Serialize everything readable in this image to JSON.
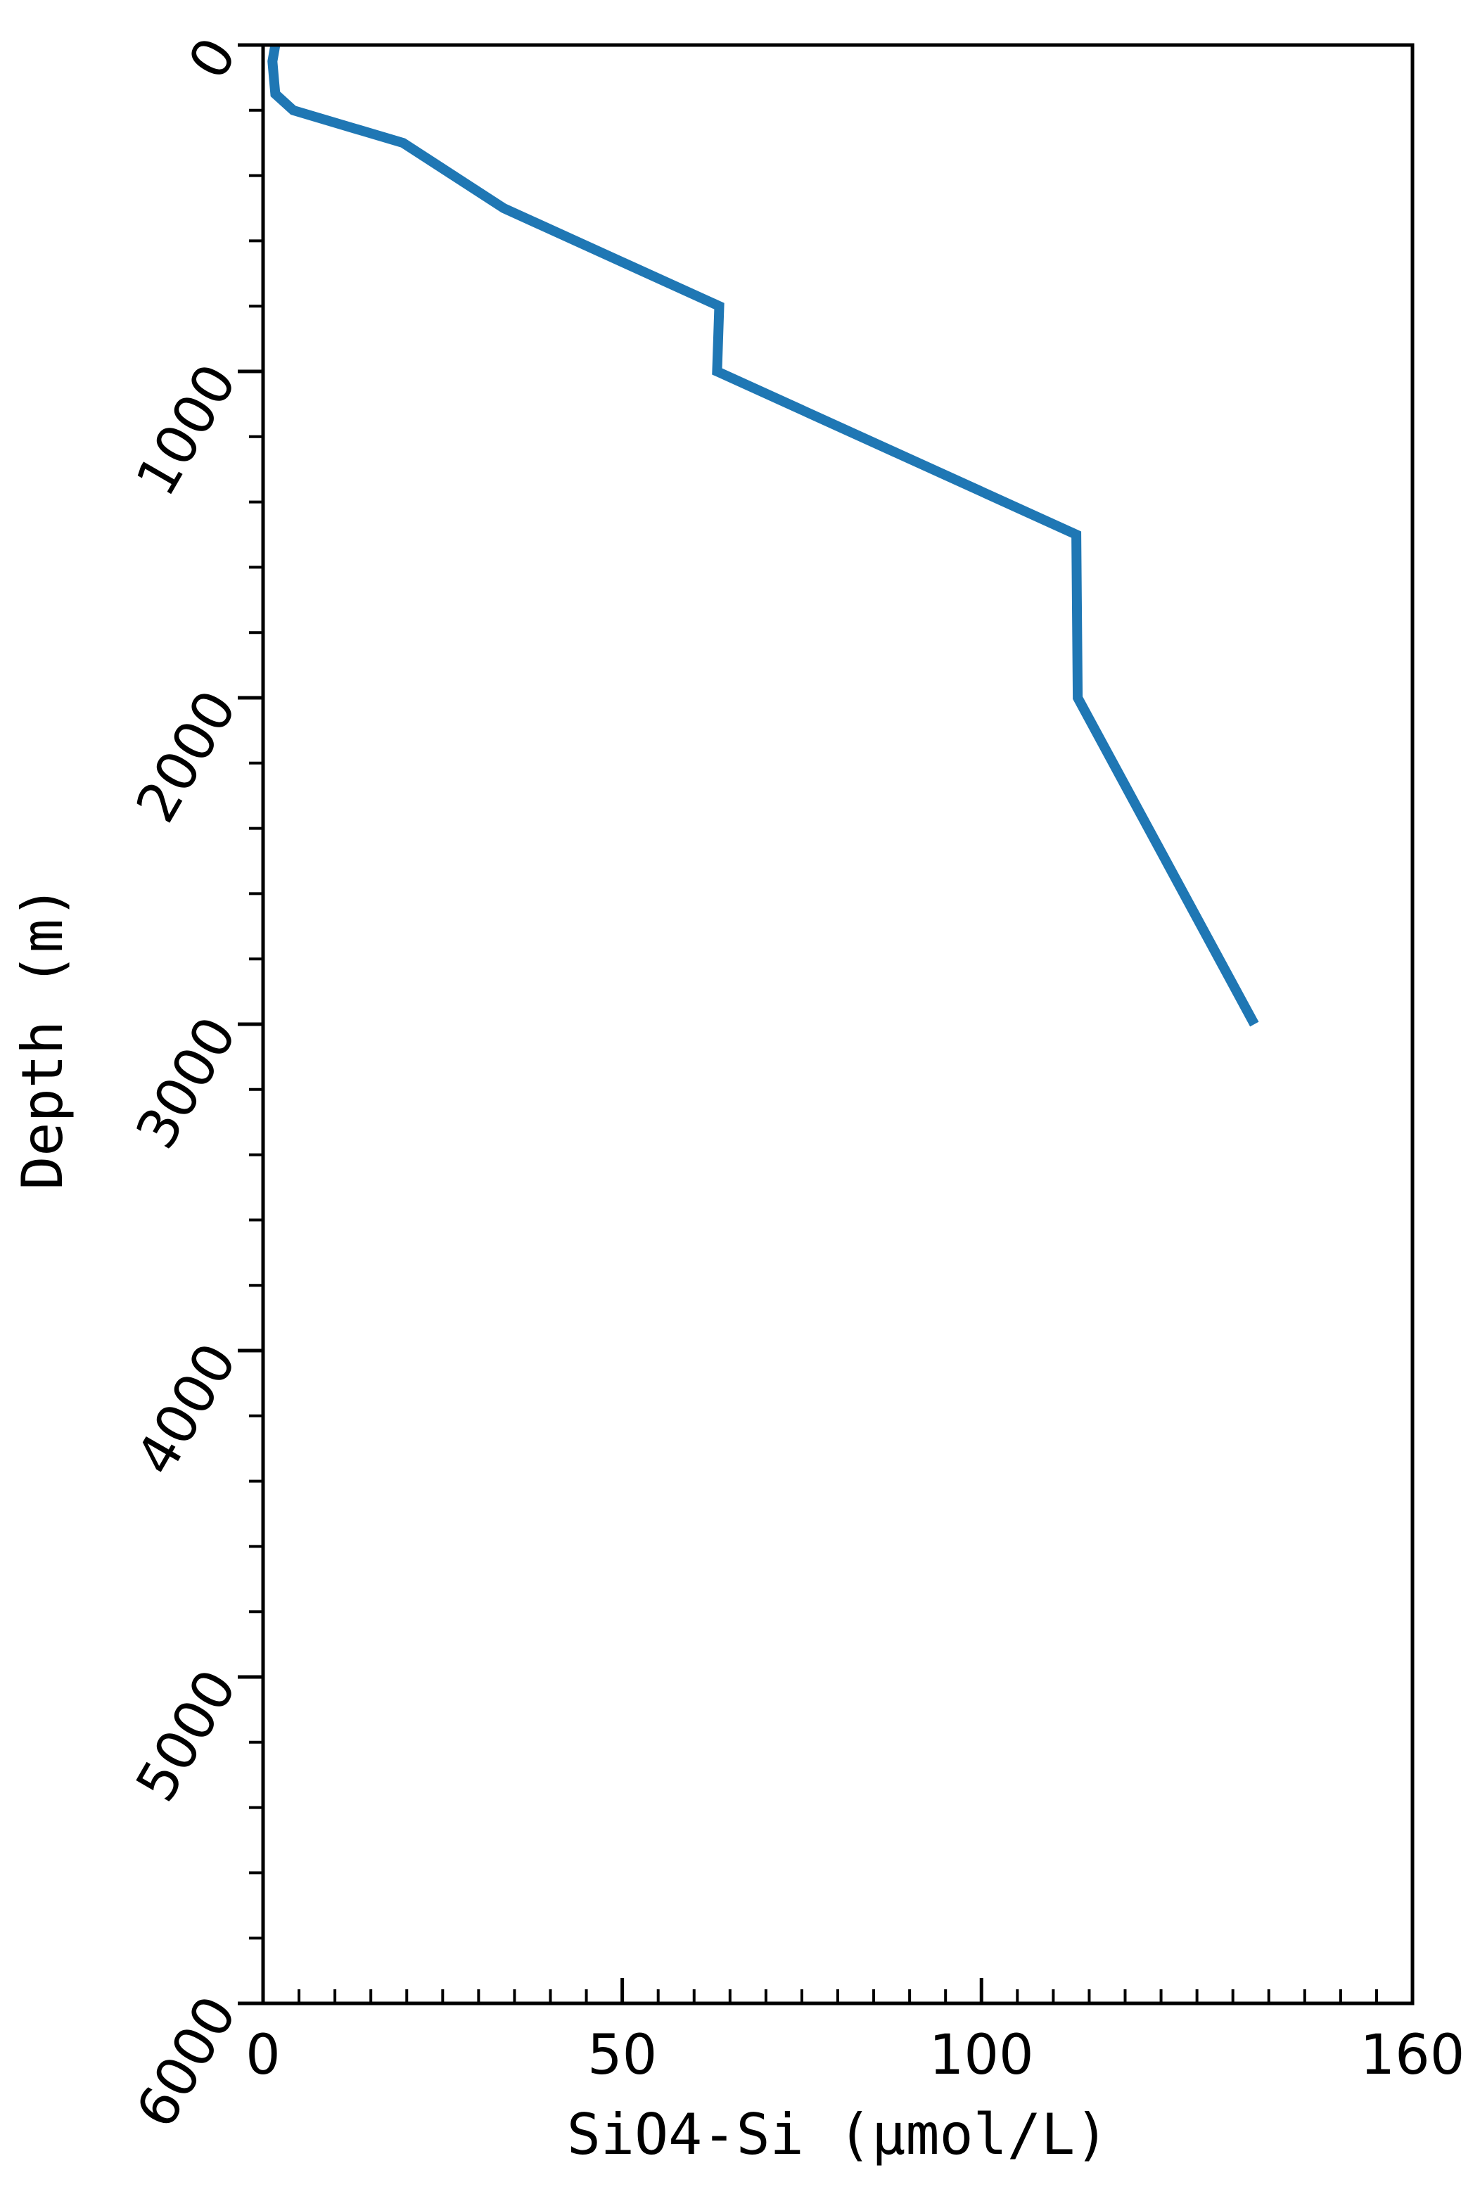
{
  "chart_data": {
    "type": "line",
    "title": "",
    "xlabel": "SiO4-Si (μmol/L)",
    "ylabel": "Depth (m)",
    "xlim": [
      0,
      160
    ],
    "ylim": [
      0,
      6000
    ],
    "y_inverted": true,
    "x_ticks": [
      0,
      50,
      100,
      160
    ],
    "y_ticks": [
      0,
      1000,
      2000,
      3000,
      4000,
      5000,
      6000
    ],
    "x_minor_step": 5,
    "y_minor_step": 200,
    "grid": false,
    "legend": "none",
    "series": [
      {
        "color": "#1f77b4",
        "x": [
          1.7,
          1.3,
          1.5,
          1.7,
          4.2,
          19.5,
          33.5,
          63.5,
          63.2,
          113.2,
          113.4,
          138
        ],
        "y": [
          0,
          50,
          100,
          150,
          200,
          300,
          500,
          800,
          1000,
          1500,
          2000,
          3000
        ]
      }
    ]
  }
}
